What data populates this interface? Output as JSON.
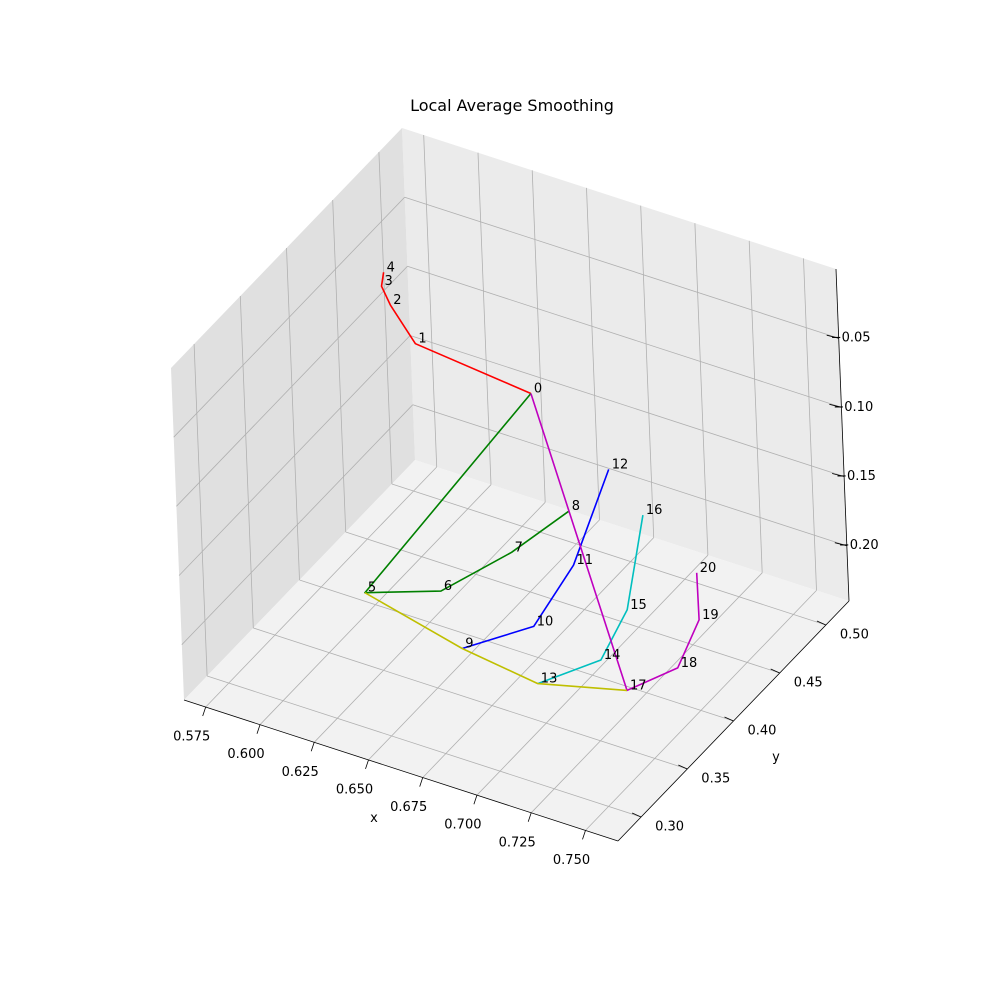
{
  "chart_data": {
    "type": "line3d",
    "title": "Local Average Smoothing",
    "xlabel": "x",
    "ylabel": "y",
    "zlabel": "",
    "x_ticks": [
      "0.575",
      "0.600",
      "0.625",
      "0.650",
      "0.675",
      "0.700",
      "0.725",
      "0.750"
    ],
    "y_ticks": [
      "0.30",
      "0.35",
      "0.40",
      "0.45",
      "0.50"
    ],
    "z_ticks": [
      "−0.20",
      "−0.15",
      "−0.10",
      "−0.05"
    ],
    "grid": true,
    "points": [
      {
        "label": "0",
        "x": 0.645,
        "y": 0.47,
        "z": -0.113
      },
      {
        "label": "1",
        "x": 0.592,
        "y": 0.47,
        "z": -0.104
      },
      {
        "label": "2",
        "x": 0.572,
        "y": 0.49,
        "z": -0.1
      },
      {
        "label": "3",
        "x": 0.566,
        "y": 0.495,
        "z": -0.093
      },
      {
        "label": "4",
        "x": 0.565,
        "y": 0.5,
        "z": -0.087
      },
      {
        "label": "5",
        "x": 0.62,
        "y": 0.345,
        "z": -0.183
      },
      {
        "label": "6",
        "x": 0.651,
        "y": 0.355,
        "z": -0.173
      },
      {
        "label": "7",
        "x": 0.669,
        "y": 0.39,
        "z": -0.16
      },
      {
        "label": "8",
        "x": 0.683,
        "y": 0.42,
        "z": -0.144
      },
      {
        "label": "9",
        "x": 0.672,
        "y": 0.328,
        "z": -0.185
      },
      {
        "label": "10",
        "x": 0.695,
        "y": 0.352,
        "z": -0.174
      },
      {
        "label": "11",
        "x": 0.699,
        "y": 0.387,
        "z": -0.152
      },
      {
        "label": "12",
        "x": 0.697,
        "y": 0.432,
        "z": -0.115
      },
      {
        "label": "13",
        "x": 0.708,
        "y": 0.325,
        "z": -0.19
      },
      {
        "label": "14",
        "x": 0.728,
        "y": 0.347,
        "z": -0.178
      },
      {
        "label": "15",
        "x": 0.73,
        "y": 0.372,
        "z": -0.158
      },
      {
        "label": "16",
        "x": 0.722,
        "y": 0.41,
        "z": -0.12
      },
      {
        "label": "17",
        "x": 0.745,
        "y": 0.335,
        "z": -0.183
      },
      {
        "label": "18",
        "x": 0.761,
        "y": 0.353,
        "z": -0.171
      },
      {
        "label": "19",
        "x": 0.762,
        "y": 0.375,
        "z": -0.151
      },
      {
        "label": "20",
        "x": 0.755,
        "y": 0.39,
        "z": -0.131
      }
    ],
    "series": [
      {
        "color": "#ff0000",
        "points": [
          0,
          1,
          2,
          3,
          4
        ]
      },
      {
        "color": "#008000",
        "points": [
          0,
          5,
          6,
          7,
          8
        ]
      },
      {
        "color": "#0000ff",
        "points": [
          9,
          10,
          11,
          12
        ]
      },
      {
        "color": "#00bfbf",
        "points": [
          13,
          14,
          15,
          16
        ]
      },
      {
        "color": "#bf00bf",
        "points": [
          0,
          17,
          18,
          19,
          20
        ]
      },
      {
        "color": "#bfbf00",
        "points": [
          5,
          9,
          13,
          17
        ]
      }
    ]
  }
}
